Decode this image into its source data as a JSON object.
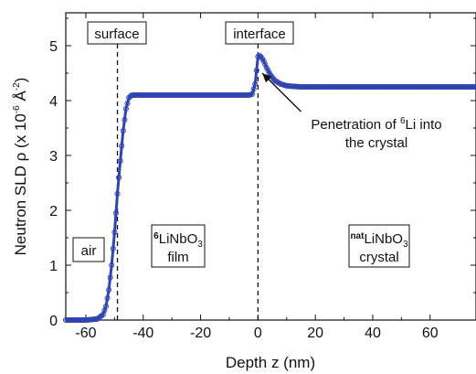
{
  "chart_data": {
    "type": "line",
    "xlabel": "Depth z (nm)",
    "ylabel_main": "Neutron SLD ρ (x 10",
    "ylabel_exp": "-6",
    "ylabel_unit": " Å",
    "ylabel_unit_exp": "-2",
    "ylabel_close": ")",
    "xlim": [
      -67,
      76
    ],
    "ylim": [
      0,
      5.6
    ],
    "x_ticks": [
      -60,
      -40,
      -20,
      0,
      20,
      40,
      60
    ],
    "x_tick_labels": [
      "-60",
      "-40",
      "-20",
      "0",
      "20",
      "40",
      "60"
    ],
    "y_ticks": [
      0,
      1,
      2,
      3,
      4,
      5
    ],
    "y_tick_labels": [
      "0",
      "1",
      "2",
      "3",
      "4",
      "5"
    ],
    "grid": false,
    "series": [
      {
        "style": "line with open circle markers",
        "color": "#2f44b0",
        "x": [
          -67,
          -60,
          -56,
          -54,
          -53,
          -52,
          -51,
          -50,
          -49,
          -48,
          -47,
          -46,
          -45,
          -44,
          -43,
          -40,
          -30,
          -20,
          -10,
          -5,
          -3,
          -2,
          -1,
          -0.5,
          0,
          0.5,
          1,
          2,
          3,
          4,
          5,
          6,
          8,
          10,
          12,
          15,
          20,
          30,
          40,
          50,
          60,
          70,
          76
        ],
        "y": [
          0,
          0,
          0.02,
          0.1,
          0.25,
          0.55,
          1.0,
          1.6,
          2.3,
          2.9,
          3.45,
          3.85,
          4.05,
          4.1,
          4.1,
          4.1,
          4.1,
          4.1,
          4.1,
          4.1,
          4.1,
          4.12,
          4.3,
          4.55,
          4.8,
          4.82,
          4.8,
          4.72,
          4.6,
          4.5,
          4.42,
          4.36,
          4.3,
          4.27,
          4.26,
          4.25,
          4.25,
          4.25,
          4.25,
          4.25,
          4.25,
          4.25,
          4.25
        ]
      }
    ],
    "vlines": [
      {
        "x": -49,
        "label": "surface"
      },
      {
        "x": 0,
        "label": "interface"
      }
    ],
    "annotations": {
      "arrow_text_line1_pre": "Penetration of ",
      "arrow_text_line1_sup": "6",
      "arrow_text_line1_post": "Li into",
      "arrow_text_line2": "the crystal",
      "arrow_from": {
        "x": 15,
        "y": 3.8
      },
      "arrow_to": {
        "x": 1.5,
        "y": 4.5
      }
    },
    "regions": [
      {
        "name": "air",
        "label": "air"
      },
      {
        "name": "film",
        "sup": "6",
        "main": "LiNbO",
        "sub": "3",
        "line2": "film"
      },
      {
        "name": "crystal",
        "sup": "nat",
        "main": "LiNbO",
        "sub": "3",
        "line2": "crystal"
      }
    ]
  }
}
